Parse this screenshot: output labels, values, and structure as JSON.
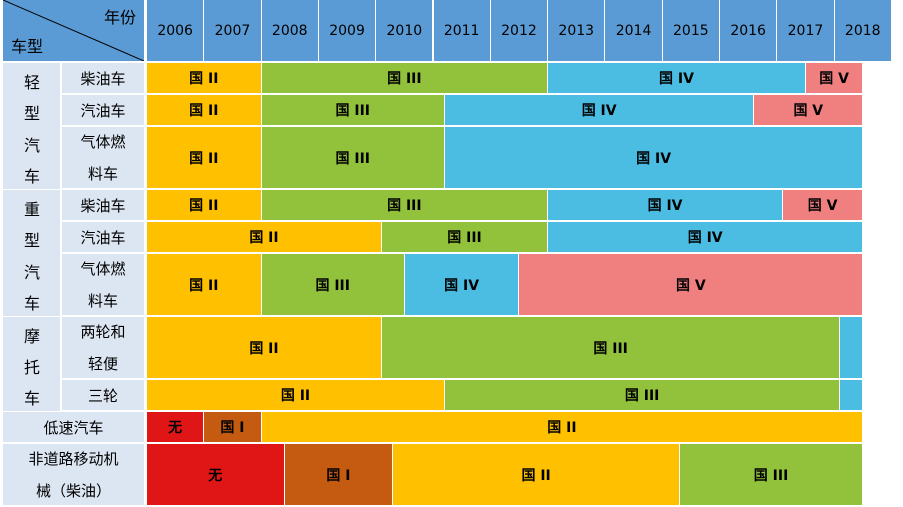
{
  "header": {
    "year_label": "年份",
    "type_label": "车型"
  },
  "years": [
    "2006",
    "2007",
    "2008",
    "2009",
    "2010",
    "2011",
    "2012",
    "2013",
    "2014",
    "2015",
    "2016",
    "2017",
    "2018"
  ],
  "groups": [
    {
      "chars": [
        "轻",
        "型",
        "汽",
        "车"
      ]
    },
    {
      "chars": [
        "重",
        "型",
        "汽",
        "车"
      ]
    },
    {
      "chars": [
        "摩",
        "托",
        "车"
      ]
    }
  ],
  "colors": {
    "国II": "#ffc000",
    "国III": "#92c13c",
    "国IV": "#4bbde2",
    "国V": "#f08080",
    "国I": "#c55a11",
    "无": "#e01515"
  },
  "chart_data": {
    "type": "table",
    "title": "",
    "row_axis_label": "车型",
    "col_axis_label": "年份",
    "rows": [
      {
        "group": "轻型汽车",
        "label": [
          "柴油车"
        ],
        "segments": [
          {
            "label": "国 II",
            "std": "国II",
            "from": 2006,
            "to": 2008
          },
          {
            "label": "国 III",
            "std": "国III",
            "from": 2008,
            "to": 2013
          },
          {
            "label": "国 IV",
            "std": "国IV",
            "from": 2013,
            "to": 2017.5
          },
          {
            "label": "国 V",
            "std": "国V",
            "from": 2017.5,
            "to": 2018.5
          }
        ]
      },
      {
        "group": "轻型汽车",
        "label": [
          "汽油车"
        ],
        "segments": [
          {
            "label": "国 II",
            "std": "国II",
            "from": 2006,
            "to": 2008
          },
          {
            "label": "国 III",
            "std": "国III",
            "from": 2008,
            "to": 2011.2
          },
          {
            "label": "国 IV",
            "std": "国IV",
            "from": 2011.2,
            "to": 2016.6
          },
          {
            "label": "国 V",
            "std": "国V",
            "from": 2016.6,
            "to": 2018.5
          }
        ]
      },
      {
        "group": "轻型汽车",
        "label": [
          "气体燃",
          "料车"
        ],
        "segments": [
          {
            "label": "国 II",
            "std": "国II",
            "from": 2006,
            "to": 2008
          },
          {
            "label": "国 III",
            "std": "国III",
            "from": 2008,
            "to": 2011.2
          },
          {
            "label": "国 IV",
            "std": "国IV",
            "from": 2011.2,
            "to": 2018.5
          }
        ]
      },
      {
        "group": "重型汽车",
        "label": [
          "柴油车"
        ],
        "segments": [
          {
            "label": "国 II",
            "std": "国II",
            "from": 2006,
            "to": 2008
          },
          {
            "label": "国 III",
            "std": "国III",
            "from": 2008,
            "to": 2013
          },
          {
            "label": "国 IV",
            "std": "国IV",
            "from": 2013,
            "to": 2017.1
          },
          {
            "label": "国 V",
            "std": "国V",
            "from": 2017.1,
            "to": 2018.5
          }
        ]
      },
      {
        "group": "重型汽车",
        "label": [
          "汽油车"
        ],
        "segments": [
          {
            "label": "国 II",
            "std": "国II",
            "from": 2006,
            "to": 2010.1
          },
          {
            "label": "国 III",
            "std": "国III",
            "from": 2010.1,
            "to": 2013
          },
          {
            "label": "国 IV",
            "std": "国IV",
            "from": 2013,
            "to": 2018.5
          }
        ]
      },
      {
        "group": "重型汽车",
        "label": [
          "气体燃",
          "料车"
        ],
        "segments": [
          {
            "label": "国 II",
            "std": "国II",
            "from": 2006,
            "to": 2008
          },
          {
            "label": "国 III",
            "std": "国III",
            "from": 2008,
            "to": 2010.5
          },
          {
            "label": "国 IV",
            "std": "国IV",
            "from": 2010.5,
            "to": 2012.5
          },
          {
            "label": "国 V",
            "std": "国V",
            "from": 2012.5,
            "to": 2018.5
          }
        ]
      },
      {
        "group": "摩托车",
        "label": [
          "两轮和",
          "轻便"
        ],
        "segments": [
          {
            "label": "国 II",
            "std": "国II",
            "from": 2006,
            "to": 2010.1
          },
          {
            "label": "国 III",
            "std": "国III",
            "from": 2010.1,
            "to": 2018.1
          },
          {
            "label": "",
            "std": "国IV",
            "from": 2018.1,
            "to": 2018.5
          }
        ]
      },
      {
        "group": "摩托车",
        "label": [
          "三轮"
        ],
        "segments": [
          {
            "label": "国 II",
            "std": "国II",
            "from": 2006,
            "to": 2011.2
          },
          {
            "label": "国 III",
            "std": "国III",
            "from": 2011.2,
            "to": 2018.1
          },
          {
            "label": "",
            "std": "国IV",
            "from": 2018.1,
            "to": 2018.5
          }
        ]
      },
      {
        "group": "",
        "label": [
          "低速汽车"
        ],
        "segments": [
          {
            "label": "无",
            "std": "无",
            "from": 2006,
            "to": 2007
          },
          {
            "label": "国 I",
            "std": "国I",
            "from": 2007,
            "to": 2008
          },
          {
            "label": "国 II",
            "std": "国II",
            "from": 2008,
            "to": 2018.5
          }
        ]
      },
      {
        "group": "",
        "label": [
          "非道路移动机",
          "械（柴油）"
        ],
        "segments": [
          {
            "label": "无",
            "std": "无",
            "from": 2006,
            "to": 2008.4
          },
          {
            "label": "国 I",
            "std": "国I",
            "from": 2008.4,
            "to": 2010.3
          },
          {
            "label": "国 II",
            "std": "国II",
            "from": 2010.3,
            "to": 2015.3
          },
          {
            "label": "国 III",
            "std": "国III",
            "from": 2015.3,
            "to": 2018.5
          }
        ]
      }
    ]
  }
}
